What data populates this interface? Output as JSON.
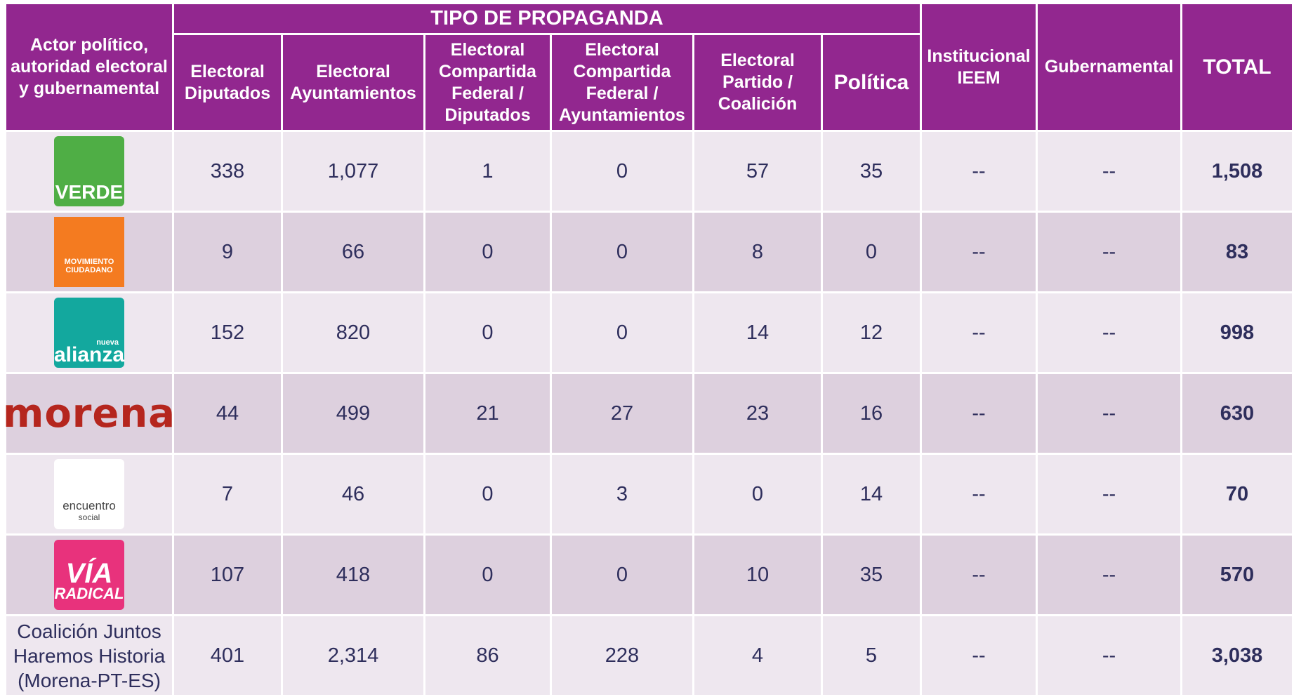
{
  "header": {
    "actor": "Actor político, autoridad electoral y gubernamental",
    "tipo": "TIPO DE PROPAGANDA",
    "columns": [
      "Electoral Diputados",
      "Electoral Ayuntamientos",
      "Electoral Compartida Federal / Diputados",
      "Electoral Compartida Federal / Ayuntamientos",
      "Electoral Partido / Coalición",
      "Política"
    ],
    "institucional": "Institucional IEEM",
    "gubernamental": "Gubernamental",
    "total": "TOTAL"
  },
  "rows": [
    {
      "logo": [
        "VERDE"
      ],
      "style": "verde",
      "values": [
        "338",
        "1,077",
        "1",
        "0",
        "57",
        "35"
      ],
      "institucional": "--",
      "gubernamental": "--",
      "total": "1,508"
    },
    {
      "logo": [
        "MOVIMIENTO",
        "CIUDADANO"
      ],
      "style": "mc",
      "values": [
        "9",
        "66",
        "0",
        "0",
        "8",
        "0"
      ],
      "institucional": "--",
      "gubernamental": "--",
      "total": "83"
    },
    {
      "logo": [
        "nueva",
        "alianza"
      ],
      "style": "na",
      "values": [
        "152",
        "820",
        "0",
        "0",
        "14",
        "12"
      ],
      "institucional": "--",
      "gubernamental": "--",
      "total": "998"
    },
    {
      "logo": [
        "morena"
      ],
      "style": "morena",
      "values": [
        "44",
        "499",
        "21",
        "27",
        "23",
        "16"
      ],
      "institucional": "--",
      "gubernamental": "--",
      "total": "630"
    },
    {
      "logo": [
        "encuentro",
        "social"
      ],
      "style": "es",
      "values": [
        "7",
        "46",
        "0",
        "3",
        "0",
        "14"
      ],
      "institucional": "--",
      "gubernamental": "--",
      "total": "70"
    },
    {
      "logo": [
        "VÍA",
        "RADICAL"
      ],
      "style": "via",
      "values": [
        "107",
        "418",
        "0",
        "0",
        "10",
        "35"
      ],
      "institucional": "--",
      "gubernamental": "--",
      "total": "570"
    },
    {
      "label": "Coalición Juntos Haremos Historia (Morena-PT-ES)",
      "values": [
        "401",
        "2,314",
        "86",
        "228",
        "4",
        "5"
      ],
      "institucional": "--",
      "gubernamental": "--",
      "total": "3,038"
    }
  ]
}
